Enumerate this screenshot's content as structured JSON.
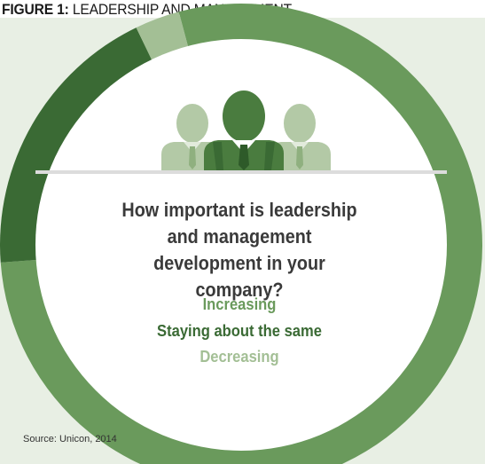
{
  "header": {
    "figure_label": "FIGURE 1:",
    "figure_title": "LEADERSHIP AND MANAGEMENT"
  },
  "colors": {
    "increasing": "#6a9a5c",
    "same": "#3a6a34",
    "decreasing": "#a3bf95"
  },
  "chart_data": {
    "type": "pie",
    "title": "How important is leadership and management development in your company?",
    "categories": [
      "Increasing",
      "Staying about the same",
      "Decreasing"
    ],
    "values": [
      78,
      19,
      3
    ],
    "labels": [
      "78%",
      "19%",
      "3%"
    ]
  },
  "source": "Source: Unicon, 2014"
}
